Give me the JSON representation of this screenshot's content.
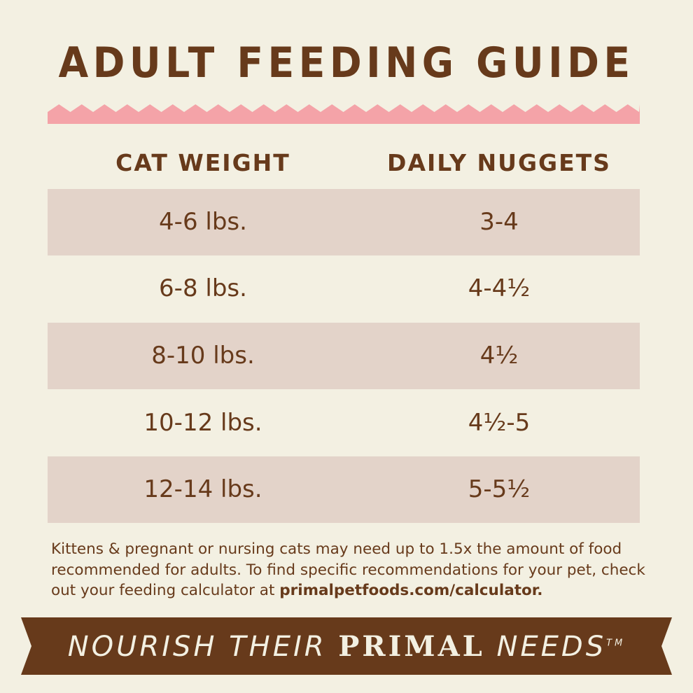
{
  "title": "ADULT FEEDING GUIDE",
  "colors": {
    "background": "#f3f0e2",
    "brown": "#673a1b",
    "pink": "#f4a3a8",
    "row_shade": "#e3d3c9"
  },
  "table": {
    "headers": [
      "CAT WEIGHT",
      "DAILY NUGGETS"
    ],
    "rows": [
      {
        "weight": "4-6 lbs.",
        "nuggets": "3-4"
      },
      {
        "weight": "6-8 lbs.",
        "nuggets": "4-4½"
      },
      {
        "weight": "8-10 lbs.",
        "nuggets": "4½"
      },
      {
        "weight": "10-12 lbs.",
        "nuggets": "4½-5"
      },
      {
        "weight": "12-14 lbs.",
        "nuggets": "5-5½"
      }
    ]
  },
  "note": {
    "text": "Kittens & pregnant or nursing cats may need up to 1.5x the amount of food recommended for adults. To find specific recommendations for your pet, check out your feeding calculator at ",
    "link": "primalpetfoods.com/calculator."
  },
  "tagline": {
    "part1": "NOURISH THEIR ",
    "primal": "PRIMAL",
    "part2": " NEEDS",
    "tm": "TM"
  }
}
